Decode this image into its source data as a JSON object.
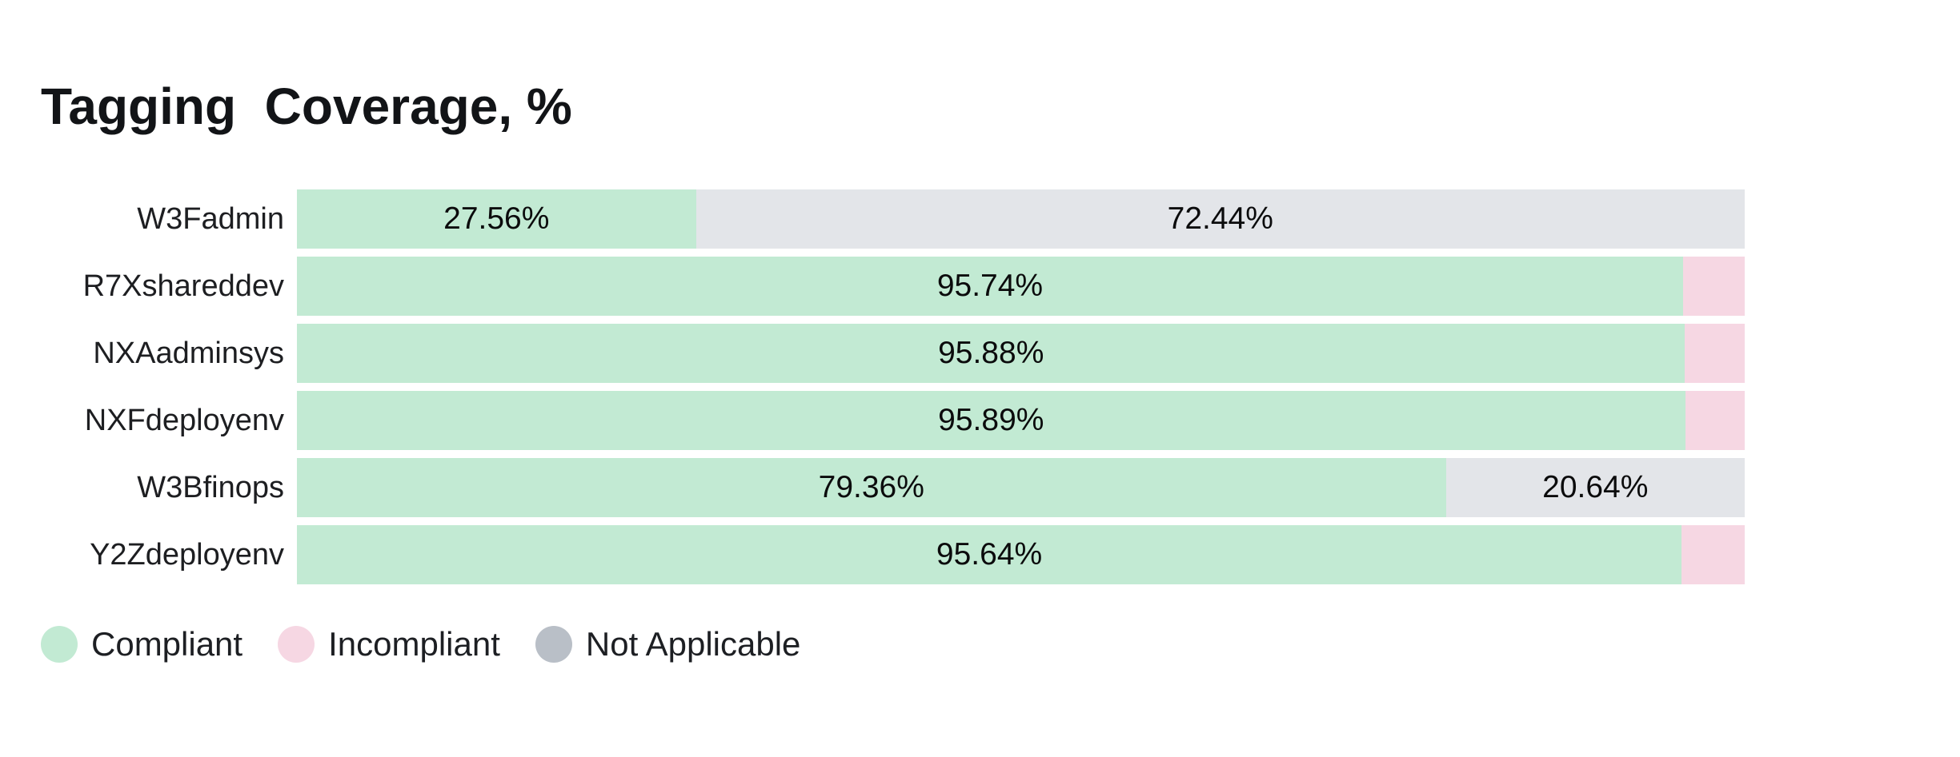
{
  "title": "Tagging  Coverage, %",
  "colors": {
    "compliant": "#C2EAD3",
    "incompliant": "#F6D7E3",
    "not_applicable_bar": "#E3E5E9",
    "not_applicable_legend": "#B9BFC7",
    "title_text": "#121417",
    "row_label_text": "#1D1E21",
    "value_text": "#0B0B0C"
  },
  "legend": {
    "items": [
      {
        "label": "Compliant",
        "series": "Compliant"
      },
      {
        "label": "Incompliant",
        "series": "Incompliant"
      },
      {
        "label": "Not Applicable",
        "series": "Not Applicable"
      }
    ]
  },
  "chart_data": {
    "type": "bar",
    "orientation": "horizontal",
    "stacked": true,
    "units": "%",
    "title": "Tagging Coverage, %",
    "xlim": [
      0,
      100
    ],
    "grid": false,
    "legend_position": "bottom",
    "categories": [
      "W3Fadmin",
      "R7Xshareddev",
      "NXAadminsys",
      "NXFdeployenv",
      "W3Bfinops",
      "Y2Zdeployenv"
    ],
    "series": [
      {
        "name": "Compliant",
        "values": [
          27.56,
          95.74,
          95.88,
          95.89,
          79.36,
          95.64
        ]
      },
      {
        "name": "Incompliant",
        "values": [
          0,
          4.26,
          4.12,
          4.11,
          0,
          4.36
        ]
      },
      {
        "name": "Not Applicable",
        "values": [
          72.44,
          0,
          0,
          0,
          20.64,
          0
        ]
      }
    ],
    "rows": [
      {
        "label": "W3Fadmin",
        "segments": [
          {
            "series": "Compliant",
            "value": 27.56,
            "text": "27.56%"
          },
          {
            "series": "Not Applicable",
            "value": 72.44,
            "text": "72.44%"
          }
        ]
      },
      {
        "label": "R7Xshareddev",
        "segments": [
          {
            "series": "Compliant",
            "value": 95.74,
            "text": "95.74%"
          },
          {
            "series": "Incompliant",
            "value": 4.26,
            "text": ""
          }
        ]
      },
      {
        "label": "NXAadminsys",
        "segments": [
          {
            "series": "Compliant",
            "value": 95.88,
            "text": "95.88%"
          },
          {
            "series": "Incompliant",
            "value": 4.12,
            "text": ""
          }
        ]
      },
      {
        "label": "NXFdeployenv",
        "segments": [
          {
            "series": "Compliant",
            "value": 95.89,
            "text": "95.89%"
          },
          {
            "series": "Incompliant",
            "value": 4.11,
            "text": ""
          }
        ]
      },
      {
        "label": "W3Bfinops",
        "segments": [
          {
            "series": "Compliant",
            "value": 79.36,
            "text": "79.36%"
          },
          {
            "series": "Not Applicable",
            "value": 20.64,
            "text": "20.64%"
          }
        ]
      },
      {
        "label": "Y2Zdeployenv",
        "segments": [
          {
            "series": "Compliant",
            "value": 95.64,
            "text": "95.64%"
          },
          {
            "series": "Incompliant",
            "value": 4.36,
            "text": ""
          }
        ]
      }
    ]
  }
}
